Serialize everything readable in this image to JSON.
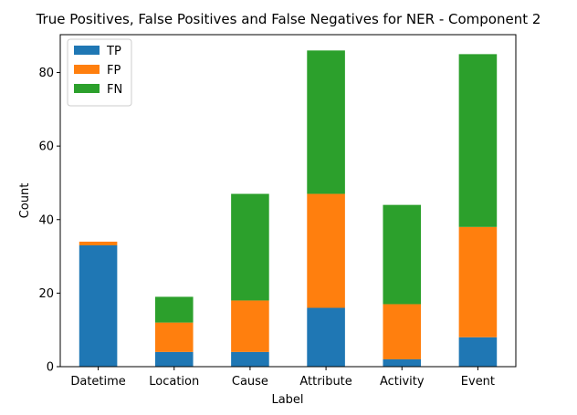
{
  "chart_data": {
    "type": "bar",
    "stacked": true,
    "title": "True Positives, False Positives and False Negatives for NER - Component 2",
    "xlabel": "Label",
    "ylabel": "Count",
    "categories": [
      "Datetime",
      "Location",
      "Cause",
      "Attribute",
      "Activity",
      "Event"
    ],
    "series": [
      {
        "name": "TP",
        "color": "#1f77b4",
        "values": [
          33,
          4,
          4,
          16,
          2,
          8
        ]
      },
      {
        "name": "FP",
        "color": "#ff7f0e",
        "values": [
          1,
          8,
          14,
          31,
          15,
          30
        ]
      },
      {
        "name": "FN",
        "color": "#2ca02c",
        "values": [
          0,
          7,
          29,
          39,
          27,
          47
        ]
      }
    ],
    "ylim": [
      0,
      90.3
    ],
    "yticks": [
      0,
      20,
      40,
      60,
      80
    ],
    "grid": false,
    "legend": "top-left"
  }
}
